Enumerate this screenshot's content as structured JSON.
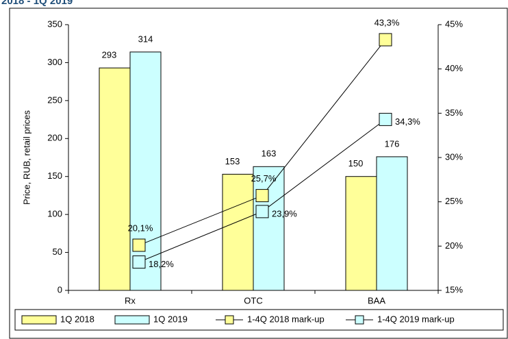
{
  "chart_data": {
    "type": "bar",
    "title": "2018 - 1Q 2019",
    "y_label": "Price, RUB, retail prices",
    "categories": [
      "Rx",
      "OTC",
      "BAA"
    ],
    "series": [
      {
        "name": "1Q 2018",
        "color": "#ffff99",
        "values": [
          293,
          153,
          150
        ]
      },
      {
        "name": "1Q 2019",
        "color": "#ccffff",
        "values": [
          314,
          163,
          176
        ]
      },
      {
        "name": "1-4Q 2018 mark-up",
        "color": "#ffff99",
        "type": "line",
        "axis": "y2",
        "values": [
          20.1,
          25.7,
          43.3
        ],
        "value_labels": [
          "20,1%",
          "25,7%",
          "43,3%"
        ]
      },
      {
        "name": "1-4Q 2019 mark-up",
        "color": "#ccffff",
        "type": "line",
        "axis": "y2",
        "values": [
          18.2,
          23.9,
          34.3
        ],
        "value_labels": [
          "18,2%",
          "23,9%",
          "34,3%"
        ]
      }
    ],
    "ylim": [
      0,
      350
    ],
    "yticks": [
      0,
      50,
      100,
      150,
      200,
      250,
      300,
      350
    ],
    "y2lim": [
      15,
      45
    ],
    "y2ticks": [
      {
        "value": 15,
        "label": "15%"
      },
      {
        "value": 20,
        "label": "20%"
      },
      {
        "value": 25,
        "label": "25%"
      },
      {
        "value": 30,
        "label": "30%"
      },
      {
        "value": 35,
        "label": "35%"
      },
      {
        "value": 40,
        "label": "40%"
      },
      {
        "value": 45,
        "label": "45%"
      }
    ],
    "legend": "bottom"
  }
}
